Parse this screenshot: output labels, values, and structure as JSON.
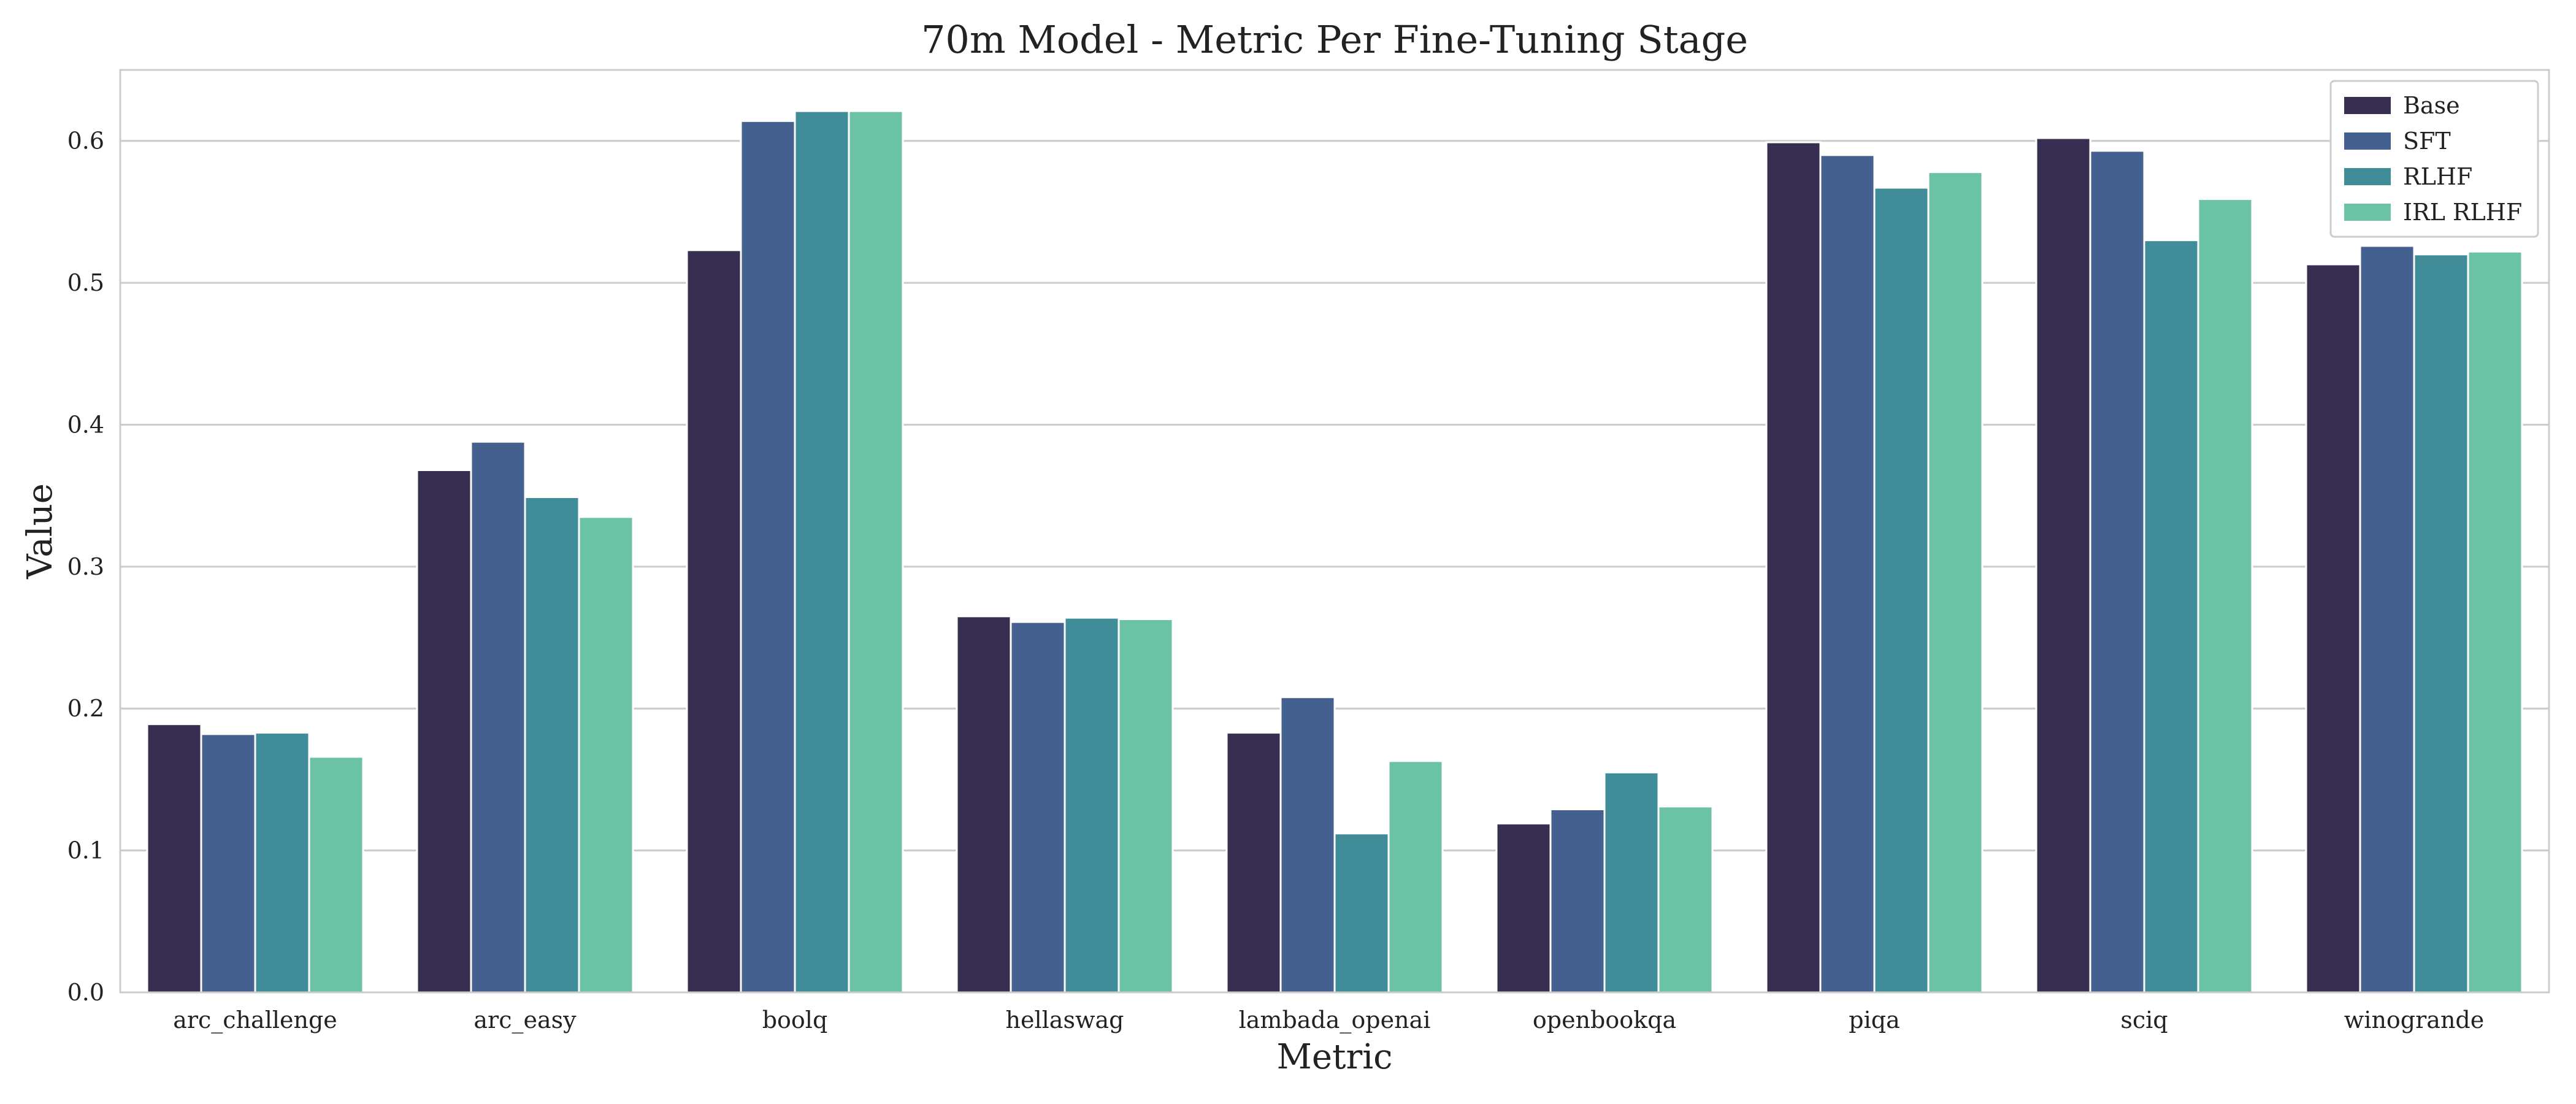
{
  "chart_data": {
    "type": "bar",
    "title": "70m Model - Metric Per Fine-Tuning Stage",
    "xlabel": "Metric",
    "ylabel": "Value",
    "ylim": [
      0.0,
      0.65
    ],
    "yticks": [
      "0.0",
      "0.1",
      "0.2",
      "0.3",
      "0.4",
      "0.5",
      "0.6"
    ],
    "grid": "horizontal",
    "legend_position": "top-right",
    "categories": [
      "arc_challenge",
      "arc_easy",
      "boolq",
      "hellaswag",
      "lambada_openai",
      "openbookqa",
      "piqa",
      "sciq",
      "winogrande"
    ],
    "series": [
      {
        "name": "Base",
        "color": "#382e51",
        "values": [
          0.189,
          0.368,
          0.523,
          0.265,
          0.183,
          0.119,
          0.599,
          0.602,
          0.513
        ]
      },
      {
        "name": "SFT",
        "color": "#43608e",
        "values": [
          0.182,
          0.388,
          0.614,
          0.261,
          0.208,
          0.129,
          0.59,
          0.593,
          0.526
        ]
      },
      {
        "name": "RLHF",
        "color": "#418c99",
        "values": [
          0.183,
          0.349,
          0.621,
          0.264,
          0.112,
          0.155,
          0.567,
          0.53,
          0.52
        ]
      },
      {
        "name": "IRL RLHF",
        "color": "#6cc2a5",
        "values": [
          0.166,
          0.335,
          0.621,
          0.263,
          0.163,
          0.131,
          0.578,
          0.559,
          0.522
        ]
      }
    ]
  }
}
